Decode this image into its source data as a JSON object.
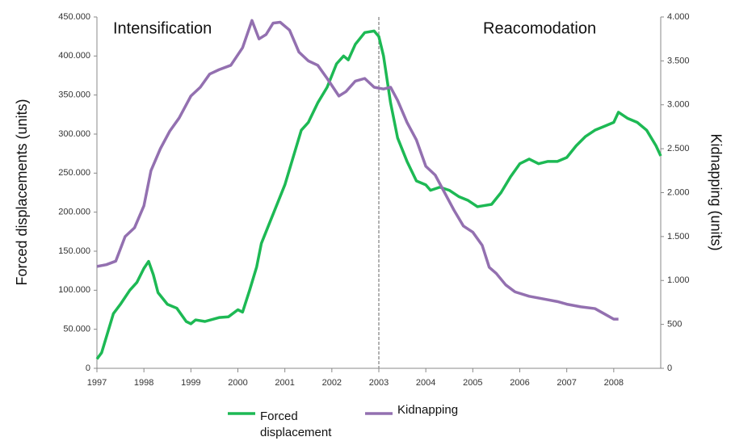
{
  "chart_data": {
    "type": "line",
    "y_label": "Forced displacements (units)",
    "y2_label": "Kidnapping  (units)",
    "annotations": [
      "Intensification",
      "Reacomodation"
    ],
    "divider_x": 2003,
    "xlim": [
      1997,
      2009
    ],
    "xticks": [
      1997,
      1998,
      1999,
      2000,
      2001,
      2002,
      2003,
      2004,
      2005,
      2006,
      2007,
      2008
    ],
    "ylim": [
      0,
      450000
    ],
    "yticks": [
      0,
      {
        "value": 50000,
        "label": "50.000"
      },
      {
        "value": 100000,
        "label": "100.000"
      },
      {
        "value": 150000,
        "label": "150.000"
      },
      {
        "value": 200000,
        "label": "200.000"
      },
      {
        "value": 250000,
        "label": "250.000"
      },
      {
        "value": 300000,
        "label": "300.000"
      },
      {
        "value": 350000,
        "label": "350.000"
      },
      {
        "value": 400000,
        "label": "400.000"
      },
      {
        "value": 450000,
        "label": "450.000"
      }
    ],
    "y2lim": [
      0,
      4000
    ],
    "y2ticks": [
      0,
      500,
      {
        "value": 1000,
        "label": "1.000"
      },
      {
        "value": 1500,
        "label": "1.500"
      },
      {
        "value": 2000,
        "label": "2.000"
      },
      {
        "value": 2500,
        "label": "2.500"
      },
      {
        "value": 3000,
        "label": "3.000"
      },
      {
        "value": 3500,
        "label": "3.500"
      },
      {
        "value": 4000,
        "label": "4.000"
      }
    ],
    "series": [
      {
        "name": "Forced displacement",
        "color": "#1db954",
        "x": [
          1997.0,
          1997.1,
          1997.2,
          1997.35,
          1997.5,
          1997.7,
          1997.85,
          1998.0,
          1998.1,
          1998.2,
          1998.3,
          1998.5,
          1998.7,
          1998.9,
          1999.0,
          1999.1,
          1999.3,
          1999.6,
          1999.8,
          2000.0,
          2000.1,
          2000.25,
          2000.4,
          2000.5,
          2000.7,
          2001.0,
          2001.2,
          2001.35,
          2001.5,
          2001.7,
          2001.9,
          2002.1,
          2002.25,
          2002.35,
          2002.5,
          2002.7,
          2002.9,
          2003.0,
          2003.1,
          2003.25,
          2003.4,
          2003.6,
          2003.8,
          2004.0,
          2004.1,
          2004.3,
          2004.5,
          2004.7,
          2004.9,
          2005.1,
          2005.2,
          2005.4,
          2005.6,
          2005.8,
          2006.0,
          2006.2,
          2006.4,
          2006.6,
          2006.8,
          2007.0,
          2007.2,
          2007.4,
          2007.6,
          2007.8,
          2008.0,
          2008.1,
          2008.3,
          2008.5,
          2008.7,
          2008.9,
          2009.0
        ],
        "values": [
          12000,
          20000,
          40000,
          70000,
          82000,
          100000,
          110000,
          128000,
          137000,
          120000,
          97000,
          82000,
          77000,
          60000,
          57000,
          62000,
          60000,
          65000,
          66000,
          75000,
          72000,
          100000,
          130000,
          160000,
          190000,
          235000,
          275000,
          305000,
          315000,
          340000,
          360000,
          390000,
          400000,
          395000,
          415000,
          430000,
          432000,
          425000,
          400000,
          340000,
          295000,
          265000,
          240000,
          235000,
          228000,
          232000,
          228000,
          220000,
          215000,
          207000,
          208000,
          210000,
          225000,
          245000,
          262000,
          268000,
          262000,
          265000,
          265000,
          270000,
          285000,
          297000,
          305000,
          310000,
          315000,
          328000,
          320000,
          315000,
          305000,
          285000,
          272000
        ]
      },
      {
        "name": "Kidnapping",
        "color": "#9370b0",
        "axis": "y2",
        "x": [
          1997.0,
          1997.2,
          1997.4,
          1997.6,
          1997.8,
          1998.0,
          1998.15,
          1998.35,
          1998.55,
          1998.75,
          1999.0,
          1999.2,
          1999.4,
          1999.6,
          1999.85,
          2000.1,
          2000.3,
          2000.45,
          2000.6,
          2000.75,
          2000.9,
          2001.1,
          2001.3,
          2001.5,
          2001.7,
          2001.9,
          2002.15,
          2002.3,
          2002.5,
          2002.7,
          2002.9,
          2003.1,
          2003.25,
          2003.4,
          2003.6,
          2003.8,
          2004.0,
          2004.2,
          2004.4,
          2004.6,
          2004.8,
          2005.0,
          2005.2,
          2005.35,
          2005.5,
          2005.7,
          2005.9,
          2006.2,
          2006.5,
          2006.8,
          2007.0,
          2007.3,
          2007.6,
          2007.8,
          2008.0,
          2008.1
        ],
        "values": [
          1160,
          1180,
          1220,
          1500,
          1600,
          1850,
          2250,
          2500,
          2700,
          2850,
          3100,
          3200,
          3350,
          3400,
          3450,
          3650,
          3960,
          3750,
          3800,
          3930,
          3940,
          3850,
          3600,
          3500,
          3450,
          3300,
          3100,
          3150,
          3270,
          3300,
          3200,
          3180,
          3200,
          3050,
          2800,
          2600,
          2300,
          2200,
          2000,
          1800,
          1620,
          1550,
          1400,
          1150,
          1080,
          950,
          870,
          820,
          790,
          760,
          730,
          700,
          680,
          620,
          560,
          560
        ]
      }
    ]
  }
}
